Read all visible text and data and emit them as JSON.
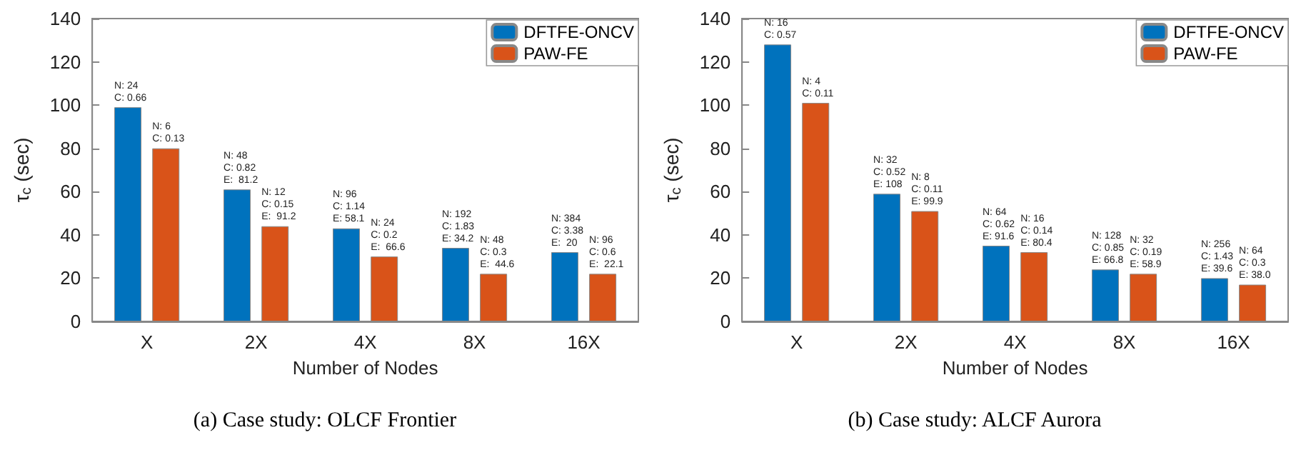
{
  "chart_data": [
    {
      "type": "bar",
      "title": "(a) Case study: OLCF Frontier",
      "xlabel": "Number of Nodes",
      "ylabel": "τ$_{c}$ (sec)",
      "categories": [
        "X",
        "2X",
        "4X",
        "8X",
        "16X"
      ],
      "series": [
        {
          "name": "DFTFE-ONCV",
          "color": "#0072bd",
          "values": [
            99,
            61,
            43,
            34,
            32
          ],
          "value_labels": [
            "N: 24\nC: 0.66",
            "N: 48\nC: 0.82\nE:  81.2",
            "N: 96\nC: 1.14\nE: 58.1",
            "N: 192\nC: 1.83\nE: 34.2",
            "N: 384\nC: 3.38\nE:  20"
          ]
        },
        {
          "name": "PAW-FE",
          "color": "#d95319",
          "values": [
            80,
            44,
            30,
            22,
            22
          ],
          "value_labels": [
            "N: 6\nC: 0.13",
            "N: 12\nC: 0.15\nE:  91.2",
            "N: 24\nC: 0.2\nE:  66.6",
            "N: 48\nC: 0.3\nE:  44.6",
            "N: 96\nC: 0.6\nE:  22.1"
          ]
        }
      ],
      "ylim": [
        0,
        140
      ],
      "yticks": [
        0,
        20,
        40,
        60,
        80,
        100,
        120,
        140
      ],
      "grid": false,
      "legend": "top right"
    },
    {
      "type": "bar",
      "title": "(b) Case study: ALCF Aurora",
      "xlabel": "Number of Nodes",
      "ylabel": "τ$_{c}$ (sec)",
      "categories": [
        "X",
        "2X",
        "4X",
        "8X",
        "16X"
      ],
      "series": [
        {
          "name": "DFTFE-ONCV",
          "color": "#0072bd",
          "values": [
            128,
            59,
            35,
            24,
            20
          ],
          "value_labels": [
            "N: 16\nC: 0.57",
            "N: 32\nC: 0.52\nE: 108",
            "N: 64\nC: 0.62\nE: 91.6",
            "N: 128\nC: 0.85\nE: 66.8",
            "N: 256\nC: 1.43\nE: 39.6"
          ]
        },
        {
          "name": "PAW-FE",
          "color": "#d95319",
          "values": [
            101,
            51,
            32,
            22,
            17
          ],
          "value_labels": [
            "N: 4\nC: 0.11",
            "N: 8\nC: 0.11\nE: 99.9",
            "N: 16\nC: 0.14\nE: 80.4",
            "N: 32\nC: 0.19\nE: 58.9",
            "N: 64\nC: 0.3\nE: 38.0"
          ]
        }
      ],
      "ylim": [
        0,
        140
      ],
      "yticks": [
        0,
        20,
        40,
        60,
        80,
        100,
        120,
        140
      ],
      "grid": false,
      "legend": "top right"
    }
  ]
}
